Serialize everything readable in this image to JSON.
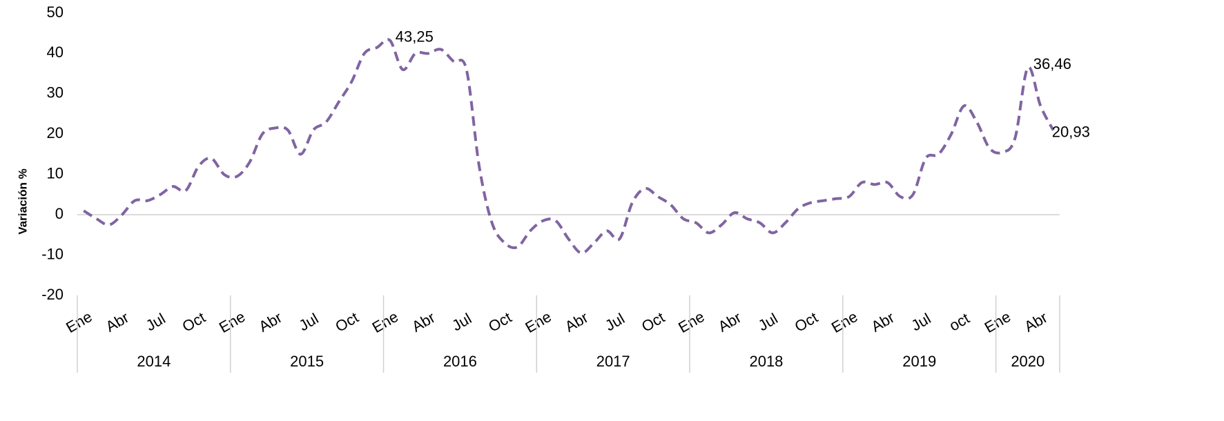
{
  "chart_data": {
    "type": "line",
    "y_label": "Variación %",
    "categories": [
      "Ene",
      null,
      null,
      "Abr",
      null,
      null,
      "Jul",
      null,
      null,
      "Oct",
      null,
      null,
      "Ene",
      null,
      null,
      "Abr",
      null,
      null,
      "Jul",
      null,
      null,
      "Oct",
      null,
      null,
      "Ene",
      null,
      null,
      "Abr",
      null,
      null,
      "Jul",
      null,
      null,
      "Oct",
      null,
      null,
      "Ene",
      null,
      null,
      "Abr",
      null,
      null,
      "Jul",
      null,
      null,
      "Oct",
      null,
      null,
      "Ene",
      null,
      null,
      "Abr",
      null,
      null,
      "Jul",
      null,
      null,
      "Oct",
      null,
      null,
      "Ene",
      null,
      null,
      "Abr",
      null,
      null,
      "Jul",
      null,
      null,
      "oct",
      null,
      null,
      "Ene",
      null,
      null,
      "Abr",
      null
    ],
    "groups": [
      {
        "label": "2014",
        "count": 12
      },
      {
        "label": "2015",
        "count": 12
      },
      {
        "label": "2016",
        "count": 12
      },
      {
        "label": "2017",
        "count": 12
      },
      {
        "label": "2018",
        "count": 12
      },
      {
        "label": "2019",
        "count": 12
      },
      {
        "label": "2020",
        "count": 5
      }
    ],
    "series": [
      {
        "color": "#8064a2",
        "values": [
          1,
          -1,
          -2.5,
          0,
          3.5,
          3.5,
          5,
          7,
          6,
          12,
          14,
          10,
          9.5,
          13,
          20,
          21.5,
          21,
          15,
          21,
          23,
          28,
          33,
          40,
          41.5,
          43.25,
          36,
          40,
          40,
          41,
          38,
          36,
          12,
          -2,
          -7,
          -8,
          -4,
          -1.5,
          -1.5,
          -6,
          -9.5,
          -7,
          -4,
          -6,
          3,
          6.5,
          4.5,
          2.5,
          -1,
          -2,
          -4.5,
          -2.5,
          0.5,
          -1,
          -2,
          -4.5,
          -2,
          1.5,
          3,
          3.5,
          4,
          4.5,
          8,
          7.5,
          8,
          4.5,
          5,
          14,
          15,
          20,
          27,
          23,
          16.5,
          15.5,
          19,
          36.46,
          27,
          20.93
        ],
        "value_labels": [
          null,
          null,
          null,
          null,
          null,
          null,
          null,
          null,
          null,
          null,
          null,
          null,
          null,
          null,
          null,
          null,
          null,
          null,
          null,
          null,
          null,
          null,
          null,
          null,
          "43,25",
          null,
          null,
          null,
          null,
          null,
          null,
          null,
          null,
          null,
          null,
          null,
          null,
          null,
          null,
          null,
          null,
          null,
          null,
          null,
          null,
          null,
          null,
          null,
          null,
          null,
          null,
          null,
          null,
          null,
          null,
          null,
          null,
          null,
          null,
          null,
          null,
          null,
          null,
          null,
          null,
          null,
          null,
          null,
          null,
          null,
          null,
          null,
          null,
          null,
          "36,46",
          null,
          "20,93"
        ]
      }
    ],
    "ylim": [
      -20,
      50
    ],
    "yticks": [
      -20,
      -10,
      0,
      10,
      20,
      30,
      40,
      50
    ],
    "zero_line": true
  }
}
